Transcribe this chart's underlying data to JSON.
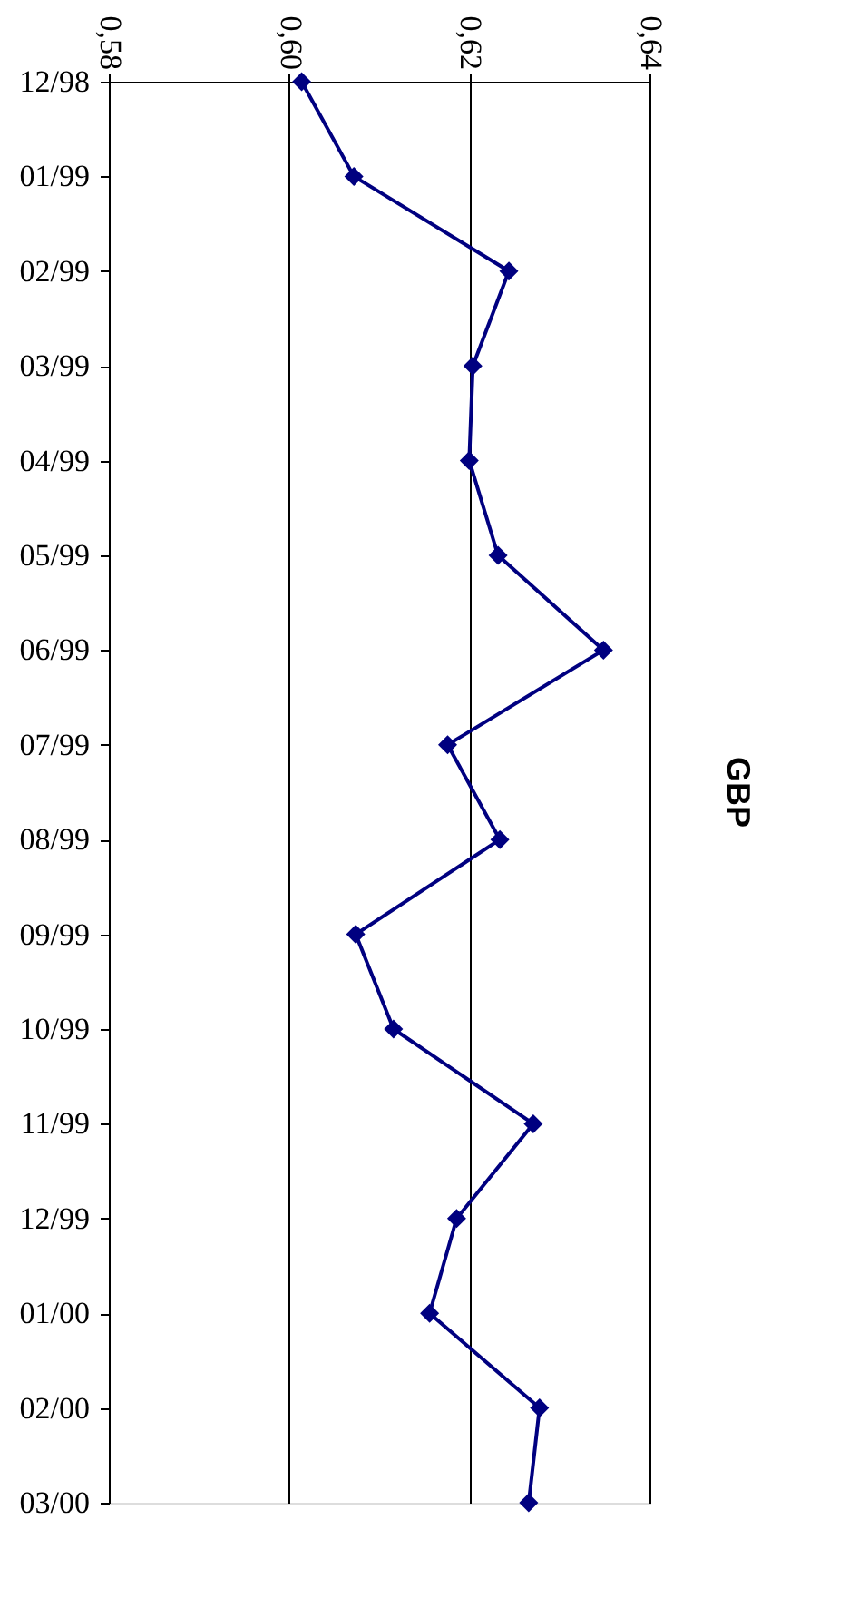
{
  "chart_data": {
    "type": "line",
    "title": "GBP",
    "orientation": "horizontal",
    "categories": [
      "12/98",
      "01/99",
      "02/99",
      "03/99",
      "04/99",
      "05/99",
      "06/99",
      "07/99",
      "08/99",
      "09/99",
      "10/99",
      "11/99",
      "12/99",
      "01/00",
      "02/00",
      "03/00"
    ],
    "series": [
      {
        "color": "#000080",
        "values": [
          0.6014,
          0.6072,
          0.6244,
          0.6204,
          0.62,
          0.6232,
          0.6349,
          0.6176,
          0.6234,
          0.6074,
          0.6116,
          0.6271,
          0.6186,
          0.6156,
          0.6278,
          0.6266
        ]
      }
    ],
    "xlim": [
      0.58,
      0.64
    ],
    "xticks": [
      {
        "value": 0.58,
        "label": "0,58"
      },
      {
        "value": 0.6,
        "label": "0,60"
      },
      {
        "value": 0.62,
        "label": "0,62"
      },
      {
        "value": 0.64,
        "label": "0,64"
      }
    ],
    "grid": "x",
    "marker": "diamond",
    "line_style": "solid"
  }
}
